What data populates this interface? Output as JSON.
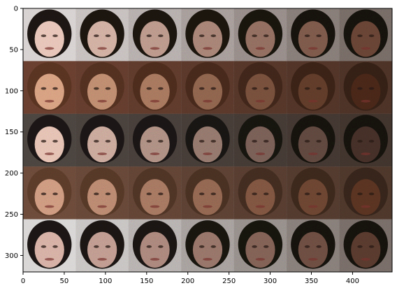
{
  "figure": {
    "x_axis": {
      "range": [
        0,
        448
      ],
      "tick_labels": [
        "0",
        "50",
        "100",
        "150",
        "200",
        "250",
        "300",
        "350",
        "400"
      ],
      "tick_values": [
        0,
        50,
        100,
        150,
        200,
        250,
        300,
        350,
        400
      ]
    },
    "y_axis": {
      "range": [
        0,
        320
      ],
      "inverted": true,
      "tick_labels": [
        "0",
        "50",
        "100",
        "150",
        "200",
        "250",
        "300"
      ],
      "tick_values": [
        0,
        50,
        100,
        150,
        200,
        250,
        300
      ]
    },
    "image_grid": {
      "rows": 5,
      "columns": 7,
      "cell_size": 64,
      "content": "noisy generated face images; each row progresses from lighter to darker",
      "rows_data": [
        {
          "hair": "#1e1712",
          "skin_start": "#e7c6ba",
          "skin_end": "#6a4536",
          "bg": "#d8d3d2"
        },
        {
          "hair": "#5a3422",
          "skin_start": "#d8a384",
          "skin_end": "#4a2819",
          "bg": "#6b4030"
        },
        {
          "hair": "#1c1715",
          "skin_start": "#e5c3b5",
          "skin_end": "#463029",
          "bg": "#4d4641"
        },
        {
          "hair": "#5d3d2b",
          "skin_start": "#cf9d83",
          "skin_end": "#5b3422",
          "bg": "#6e4c3b"
        },
        {
          "hair": "#1c1713",
          "skin_start": "#d7b2a7",
          "skin_end": "#5a3b2f",
          "bg": "#d9d7d6"
        }
      ]
    }
  }
}
